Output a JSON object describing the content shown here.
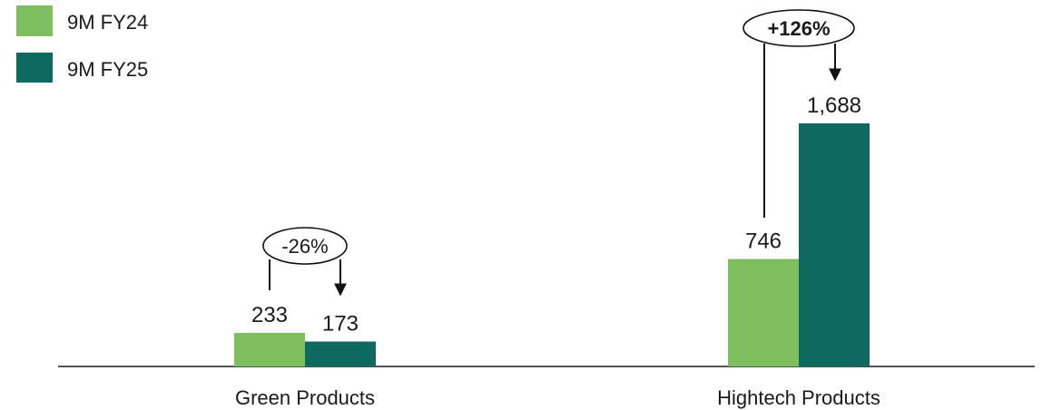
{
  "chart_data": {
    "type": "bar",
    "title": "",
    "xlabel": "",
    "ylabel": "",
    "categories": [
      "Green Products",
      "Hightech Products"
    ],
    "series": [
      {
        "name": "9M FY24",
        "values": [
          233,
          746
        ],
        "labels": [
          "233",
          "746"
        ],
        "color": "#7DBE5F"
      },
      {
        "name": "9M FY25",
        "values": [
          173,
          1688
        ],
        "labels": [
          "173",
          "1,688"
        ],
        "color": "#0E6A61"
      }
    ],
    "changes": [
      "-26%",
      "+126%"
    ],
    "ylim": [
      0,
      1900
    ],
    "grid": false,
    "legend_position": "top-left"
  }
}
